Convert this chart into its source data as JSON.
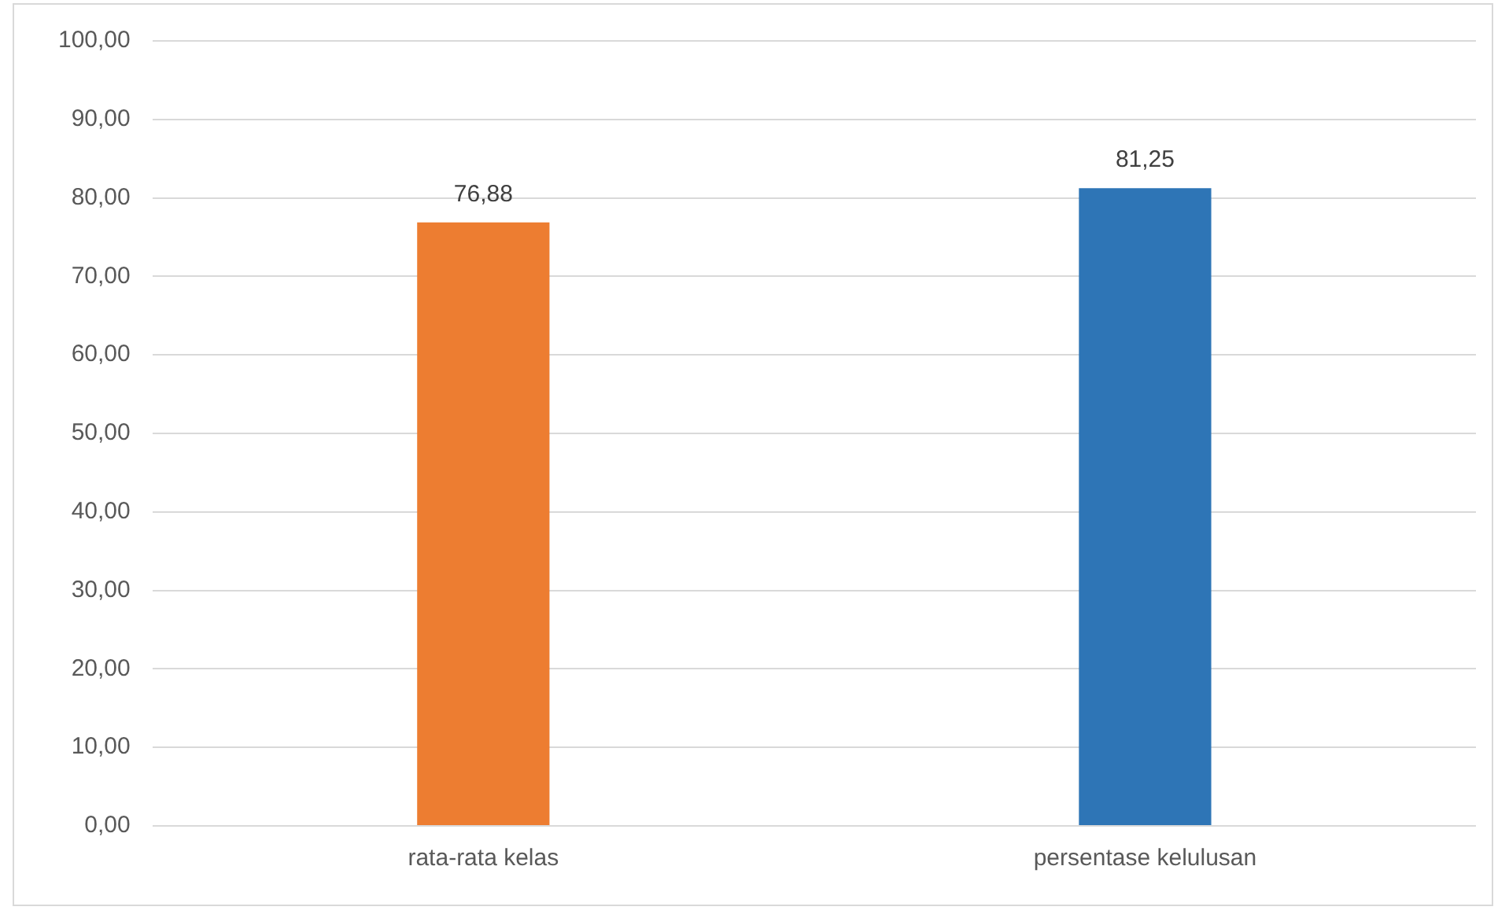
{
  "chart_data": {
    "type": "bar",
    "categories": [
      "rata-rata kelas",
      "persentase kelulusan"
    ],
    "values": [
      76.88,
      81.25
    ],
    "colors": [
      "#ed7d31",
      "#2e75b6"
    ],
    "value_labels": [
      "76,88",
      "81,25"
    ],
    "ylim": [
      0,
      100
    ],
    "yticks": [
      {
        "value": 0,
        "label": "0,00"
      },
      {
        "value": 10,
        "label": "10,00"
      },
      {
        "value": 20,
        "label": "20,00"
      },
      {
        "value": 30,
        "label": "30,00"
      },
      {
        "value": 40,
        "label": "40,00"
      },
      {
        "value": 50,
        "label": "50,00"
      },
      {
        "value": 60,
        "label": "60,00"
      },
      {
        "value": 70,
        "label": "70,00"
      },
      {
        "value": 80,
        "label": "80,00"
      },
      {
        "value": 90,
        "label": "90,00"
      },
      {
        "value": 100,
        "label": "100,00"
      }
    ],
    "grid": "y",
    "legend": false
  }
}
